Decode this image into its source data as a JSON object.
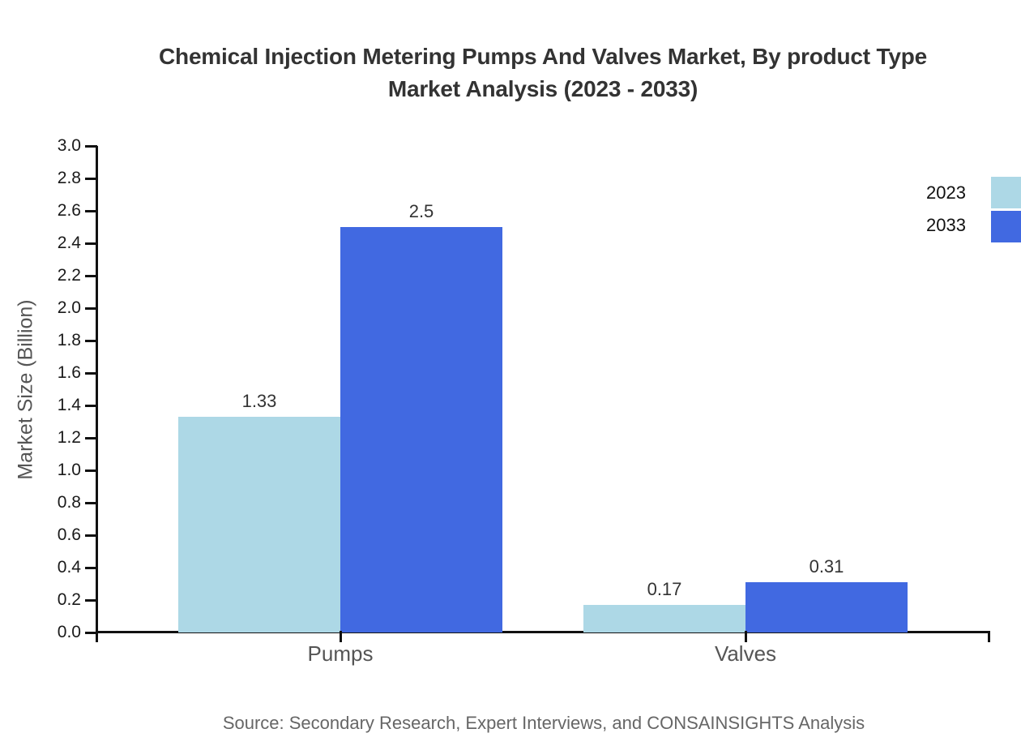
{
  "page": {
    "background": "#ffffff"
  },
  "chart_data": {
    "type": "bar",
    "title_line1": "Chemical Injection Metering Pumps And Valves Market, By product Type",
    "title_line2": "Market Analysis (2023 - 2033)",
    "title": "Chemical Injection Metering Pumps And Valves Market, By product Type Market Analysis (2023 - 2033)",
    "ylabel": "Market Size (Billion)",
    "xlabel": "",
    "categories": [
      "Pumps",
      "Valves"
    ],
    "series": [
      {
        "name": "2023",
        "color": "#ADD8E6",
        "values": [
          1.33,
          0.17
        ],
        "value_labels": [
          "1.33",
          "0.17"
        ]
      },
      {
        "name": "2033",
        "color": "#4169E1",
        "values": [
          2.5,
          0.31
        ],
        "value_labels": [
          "2.5",
          "0.31"
        ]
      }
    ],
    "ylim": [
      0,
      3
    ],
    "ytick_step": 0.2,
    "ytick_labels": [
      "0.0",
      "0.2",
      "0.4",
      "0.6",
      "0.8",
      "1.0",
      "1.2",
      "1.4",
      "1.6",
      "1.8",
      "2.0",
      "2.2",
      "2.4",
      "2.6",
      "2.8",
      "3.0"
    ],
    "grid": false,
    "legend_position": "top-right",
    "axis_color": "#111111",
    "tick_label_color": "#1a1a1a",
    "category_label_color": "#555555",
    "value_label_color": "#333333",
    "title_color": "#333333",
    "legend_label_color": "#111111",
    "source_color": "#666666",
    "source": "Source: Secondary Research, Expert Interviews, and CONSAINSIGHTS Analysis"
  }
}
